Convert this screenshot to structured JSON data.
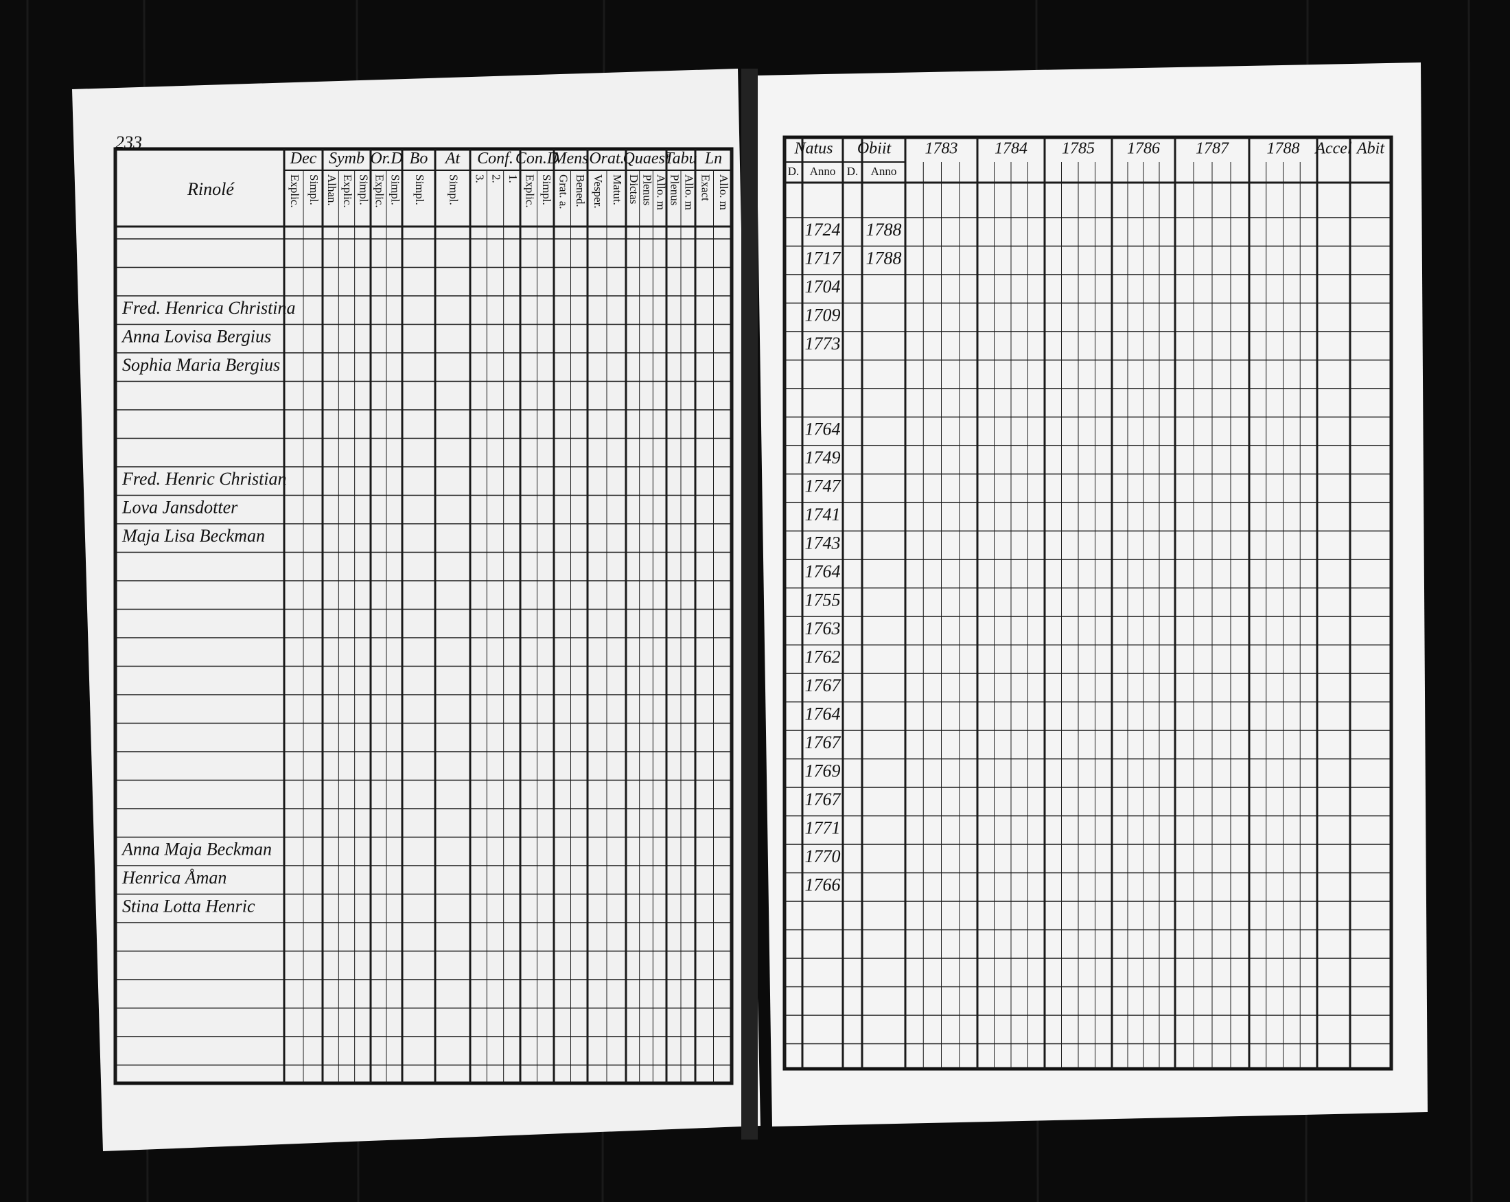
{
  "left_page": {
    "page_number": "233",
    "parish": "Rinolé",
    "column_groups": [
      {
        "label": "Dec",
        "sub": [
          "Explic.",
          "Simpl."
        ]
      },
      {
        "label": "Symb",
        "sub": [
          "Alhan.",
          "Explic.",
          "Simpl."
        ]
      },
      {
        "label": "Or.D",
        "sub": [
          "Explic.",
          "Simpl."
        ]
      },
      {
        "label": "Bo",
        "sub": [
          "Simpl."
        ]
      },
      {
        "label": "At",
        "sub": [
          "Simpl."
        ]
      },
      {
        "label": "Conf.",
        "sub": [
          "3.",
          "2.",
          "1."
        ]
      },
      {
        "label": "Con.D",
        "sub": [
          "Explic.",
          "Simpl."
        ]
      },
      {
        "label": "Mens",
        "sub": [
          "Grat. a.",
          "Bened."
        ]
      },
      {
        "label": "Orat.",
        "sub": [
          "Vesper.",
          "Matut."
        ]
      },
      {
        "label": "Quaest",
        "sub": [
          "Dictas",
          "Plenus",
          "Allo. m"
        ]
      },
      {
        "label": "Tabu",
        "sub": [
          "Plenus",
          "Allo. m"
        ]
      },
      {
        "label": "Ln",
        "sub": [
          "Exact",
          "Allo. m"
        ]
      }
    ],
    "names": [
      null,
      null,
      "Fred. Henrica Christina",
      "Anna Lovisa Bergius",
      "Sophia Maria Bergius",
      null,
      null,
      null,
      "Fred. Henric Christian",
      "Lova Jansdotter",
      "Maja Lisa Beckman",
      null,
      null,
      null,
      null,
      null,
      null,
      null,
      null,
      null,
      null,
      "Anna Maja Beckman",
      "Henrica Åman",
      "Stina Lotta Henric"
    ]
  },
  "right_page": {
    "groups": [
      "Natus",
      "Obiit"
    ],
    "sub_headers": [
      "D.",
      "Anno",
      "D.",
      "Anno"
    ],
    "years": [
      "1783",
      "1784",
      "1785",
      "1786",
      "1787",
      "1788"
    ],
    "extra": [
      "Accel",
      "Abit"
    ],
    "rows": [
      {
        "born": "1724",
        "died": "1788"
      },
      {
        "born": "1717",
        "died": "1788"
      },
      {
        "born": "1704"
      },
      {
        "born": "1709"
      },
      {
        "born": "1773"
      },
      null,
      null,
      {
        "born": "1764"
      },
      {
        "born": "1749"
      },
      {
        "born": "1747"
      },
      {
        "born": "1741"
      },
      {
        "born": "1743"
      },
      {
        "born": "1764"
      },
      {
        "born": "1755"
      },
      {
        "born": "1763"
      },
      {
        "born": "1762"
      },
      {
        "born": "1767"
      },
      {
        "born": "1764"
      },
      {
        "born": "1767"
      },
      {
        "born": "1769"
      },
      {
        "born": "1767"
      },
      {
        "born": "1771"
      },
      {
        "born": "1770"
      },
      {
        "born": "1766"
      }
    ]
  }
}
